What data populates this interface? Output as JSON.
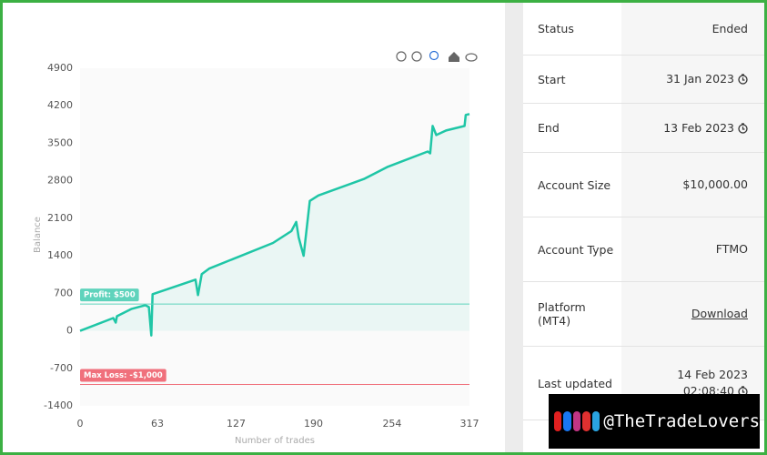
{
  "chart_data": {
    "type": "line",
    "y_label": "Balance",
    "x_label": "Number of trades",
    "xlim": [
      0,
      317
    ],
    "xticks": [
      0,
      63,
      127,
      190,
      254,
      317
    ],
    "ylim": [
      -1400,
      4900
    ],
    "yticks": [
      4900,
      4200,
      3500,
      2800,
      2100,
      1400,
      700,
      0,
      -700,
      -1400
    ],
    "series": [
      {
        "color": "#1fc6a6",
        "x": [
          0,
          27,
          29,
          30,
          42,
          53,
          56,
          58,
          59,
          94,
          96,
          99,
          105,
          157,
          172,
          176,
          178,
          182,
          187,
          194,
          231,
          250,
          283,
          285,
          287,
          290,
          298,
          313,
          314,
          317
        ],
        "values": [
          0,
          239,
          154,
          273,
          410,
          478,
          444,
          -85,
          683,
          956,
          666,
          1058,
          1161,
          1639,
          1861,
          2032,
          1741,
          1400,
          2424,
          2526,
          2834,
          3056,
          3346,
          3312,
          3824,
          3653,
          3738,
          3824,
          4029,
          4046
        ]
      }
    ],
    "profit_target": {
      "value": 500,
      "label": "Profit: $500",
      "color": "#5fd3bc"
    },
    "max_loss": {
      "value": -1000,
      "label": "Max Loss: -$1,000",
      "color": "#f0707c"
    }
  },
  "details": {
    "rows": [
      {
        "label": "Status",
        "value": "Ended"
      },
      {
        "label": "Start",
        "value": "31 Jan 2023"
      },
      {
        "label": "End",
        "value": "13 Feb 2023"
      },
      {
        "label": "Account Size",
        "value": "$10,000.00"
      },
      {
        "label": "Account Type",
        "value": "FTMO"
      },
      {
        "label": "Platform (MT4)",
        "value": "Download"
      },
      {
        "label": "Last updated",
        "value": "14 Feb 2023",
        "time": "02:08:40"
      }
    ]
  },
  "watermark": "@TheTradeLovers"
}
